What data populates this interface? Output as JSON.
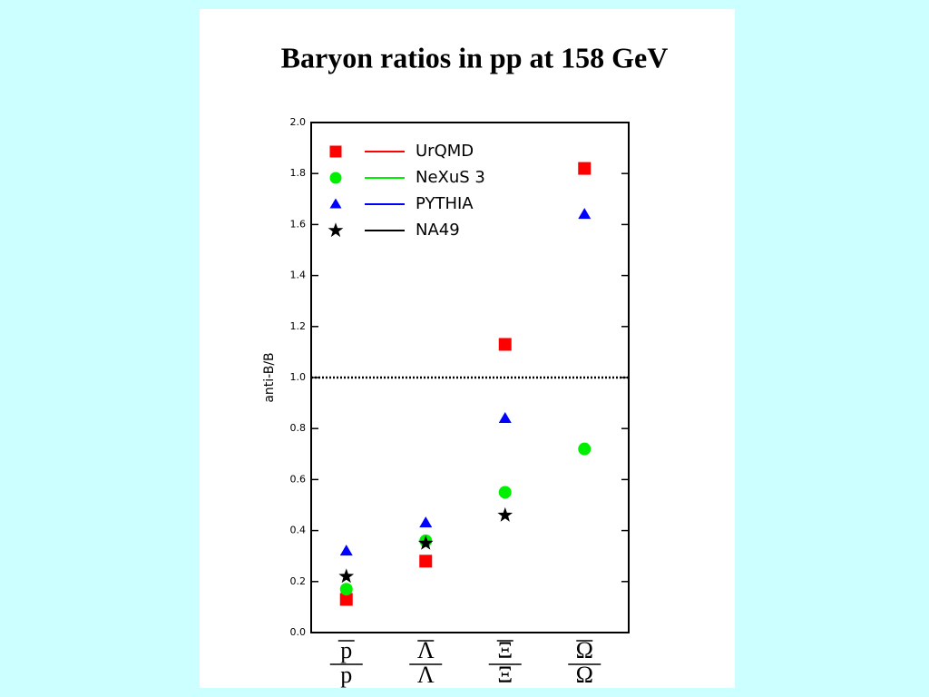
{
  "chart_data": {
    "type": "scatter",
    "title": "Baryon ratios in pp at 158 GeV",
    "y_label": "anti-B/B",
    "categories": [
      {
        "numerator": "p",
        "denominator": "p"
      },
      {
        "numerator": "Λ",
        "denominator": "Λ"
      },
      {
        "numerator": "Ξ",
        "denominator": "Ξ"
      },
      {
        "numerator": "Ω",
        "denominator": "Ω"
      }
    ],
    "series": [
      {
        "name": "UrQMD",
        "color": "#ff0000",
        "marker": "square",
        "values": [
          0.13,
          0.28,
          1.13,
          1.82
        ]
      },
      {
        "name": "NeXuS 3",
        "color": "#00ee00",
        "marker": "circle",
        "values": [
          0.17,
          0.36,
          0.55,
          0.72
        ]
      },
      {
        "name": "PYTHIA",
        "color": "#0000ff",
        "marker": "triangle",
        "values": [
          0.32,
          0.43,
          0.84,
          1.64
        ]
      },
      {
        "name": "NA49",
        "color": "#000000",
        "marker": "star",
        "values": [
          0.22,
          0.35,
          0.46,
          null
        ]
      }
    ],
    "reference_line": 1.0,
    "ylim": [
      0,
      2
    ],
    "yticks": [
      {
        "value": 0,
        "label": "0.0"
      },
      {
        "value": 0.2,
        "label": "0.2"
      },
      {
        "value": 0.4,
        "label": "0.4"
      },
      {
        "value": 0.6,
        "label": "0.6"
      },
      {
        "value": 0.8,
        "label": "0.8"
      },
      {
        "value": 1,
        "label": "1.0"
      },
      {
        "value": 1.2,
        "label": "1.2"
      },
      {
        "value": 1.4,
        "label": "1.4"
      },
      {
        "value": 1.6,
        "label": "1.6"
      },
      {
        "value": 1.8,
        "label": "1.8"
      },
      {
        "value": 2,
        "label": "2.0"
      }
    ],
    "legend": "upper left"
  }
}
